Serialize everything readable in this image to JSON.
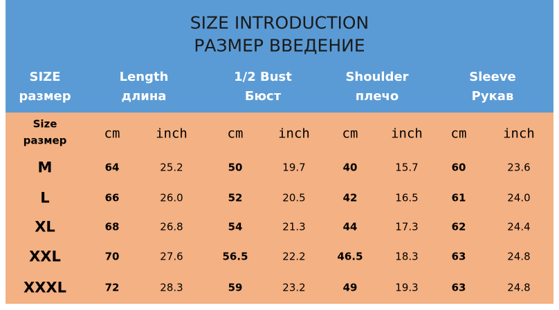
{
  "header": {
    "title": [
      "SIZE INTRODUCTION",
      "РАЗМЕР ВВЕДЕНИЕ"
    ]
  },
  "table": {
    "columns": [
      [
        "SIZE",
        "размер"
      ],
      [
        "Length",
        "длина"
      ],
      [
        "1/2 Bust",
        "Бюст"
      ],
      [
        "Shoulder",
        "плечо"
      ],
      [
        "Sleeve",
        "Рукав"
      ]
    ],
    "size_label": [
      "Size",
      "размер"
    ],
    "units": [
      "cm",
      "inch",
      "cm",
      "inch",
      "cm",
      "inch",
      "cm",
      "inch"
    ],
    "rows": [
      [
        "M",
        "64",
        "25.2",
        "50",
        "19.7",
        "40",
        "15.7",
        "60",
        "23.6"
      ],
      [
        "L",
        "66",
        "26.0",
        "52",
        "20.5",
        "42",
        "16.5",
        "61",
        "24.0"
      ],
      [
        "XL",
        "68",
        "26.8",
        "54",
        "21.3",
        "44",
        "17.3",
        "62",
        "24.4"
      ],
      [
        "XXL",
        "70",
        "27.6",
        "56.5",
        "22.2",
        "46.5",
        "18.3",
        "63",
        "24.8"
      ],
      [
        "XXXL",
        "72",
        "28.3",
        "59",
        "23.2",
        "49",
        "19.3",
        "63",
        "24.8"
      ]
    ]
  }
}
